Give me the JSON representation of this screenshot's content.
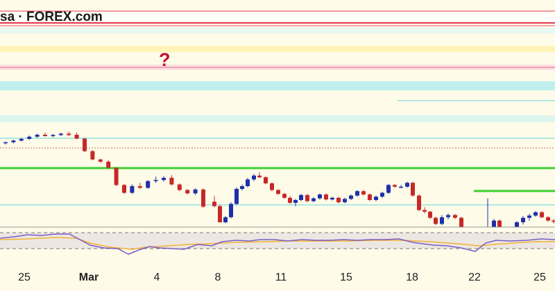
{
  "header": {
    "brand": "sa · FOREX.com"
  },
  "annotation": {
    "marker": "?"
  },
  "colors": {
    "background": "#fffbe9",
    "bull": "#1f2fa8",
    "bear": "#c62828",
    "resistance_red": "#e0374d",
    "resistance_pink": "#f3a3ae",
    "support_green": "#3ecf2e",
    "level_cyan": "#62d6d9",
    "zone_cyan": "#bff0ee",
    "zone_yellow": "#fff3b8",
    "zone_mint": "#ddf6ee",
    "rsi_line": "#7a5cc4",
    "rsi_signal": "#f2b234"
  },
  "chart_data": {
    "type": "candlestick",
    "x_tick_labels": [
      {
        "label": "25",
        "index": 1,
        "bold": false
      },
      {
        "label": "Mar",
        "index": 5,
        "bold": true
      },
      {
        "label": "4",
        "index": 10,
        "bold": false
      },
      {
        "label": "8",
        "index": 15,
        "bold": false
      },
      {
        "label": "11",
        "index": 18,
        "bold": false
      },
      {
        "label": "15",
        "index": 23,
        "bold": false
      },
      {
        "label": "18",
        "index": 26,
        "bold": false
      },
      {
        "label": "22",
        "index": 31,
        "bold": false
      },
      {
        "label": "25",
        "index": 34,
        "bold": false
      }
    ],
    "price_ylim": [
      0,
      100
    ],
    "candles": [
      {
        "o": 73.6,
        "h": 74.0,
        "l": 73.0,
        "c": 73.8
      },
      {
        "o": 73.8,
        "h": 74.8,
        "l": 73.4,
        "c": 74.4
      },
      {
        "o": 74.4,
        "h": 75.4,
        "l": 74.0,
        "c": 75.0
      },
      {
        "o": 75.0,
        "h": 76.2,
        "l": 74.6,
        "c": 75.8
      },
      {
        "o": 75.8,
        "h": 76.9,
        "l": 75.4,
        "c": 76.5
      },
      {
        "o": 76.5,
        "h": 77.2,
        "l": 75.9,
        "c": 76.0
      },
      {
        "o": 76.0,
        "h": 76.8,
        "l": 75.6,
        "c": 76.4
      },
      {
        "o": 76.4,
        "h": 77.2,
        "l": 76.0,
        "c": 76.9
      },
      {
        "o": 76.9,
        "h": 77.6,
        "l": 76.0,
        "c": 76.4
      },
      {
        "o": 76.5,
        "h": 77.3,
        "l": 74.9,
        "c": 75.1
      },
      {
        "o": 75.1,
        "h": 75.4,
        "l": 70.2,
        "c": 70.6
      },
      {
        "o": 70.6,
        "h": 70.9,
        "l": 67.3,
        "c": 67.6
      },
      {
        "o": 67.6,
        "h": 67.9,
        "l": 66.4,
        "c": 66.8
      },
      {
        "o": 66.8,
        "h": 67.4,
        "l": 64.2,
        "c": 64.6
      },
      {
        "o": 64.6,
        "h": 64.9,
        "l": 58.0,
        "c": 58.4
      },
      {
        "o": 58.4,
        "h": 58.8,
        "l": 55.2,
        "c": 55.6
      },
      {
        "o": 55.6,
        "h": 58.6,
        "l": 55.2,
        "c": 58.0
      },
      {
        "o": 58.0,
        "h": 59.2,
        "l": 57.0,
        "c": 57.4
      },
      {
        "o": 57.4,
        "h": 60.2,
        "l": 57.0,
        "c": 59.8
      },
      {
        "o": 59.8,
        "h": 61.4,
        "l": 59.2,
        "c": 60.2
      },
      {
        "o": 60.2,
        "h": 61.6,
        "l": 59.6,
        "c": 61.0
      },
      {
        "o": 61.0,
        "h": 62.0,
        "l": 58.2,
        "c": 58.6
      },
      {
        "o": 58.6,
        "h": 59.0,
        "l": 56.2,
        "c": 56.6
      },
      {
        "o": 56.6,
        "h": 57.0,
        "l": 55.0,
        "c": 55.4
      },
      {
        "o": 55.4,
        "h": 57.2,
        "l": 54.8,
        "c": 56.8
      },
      {
        "o": 56.8,
        "h": 57.2,
        "l": 50.2,
        "c": 50.6
      }
    ]
  }
}
